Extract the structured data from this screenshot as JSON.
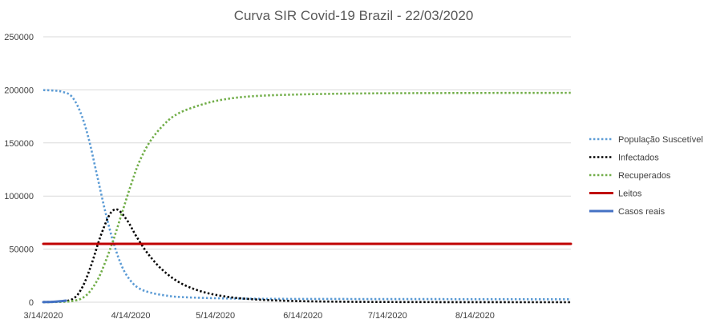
{
  "chart_data": {
    "type": "line",
    "title": "Curva SIR Covid-19 Brazil - 22/03/2020",
    "xlabel": "",
    "ylabel": "",
    "ylim": [
      0,
      250000
    ],
    "yticks": [
      0,
      50000,
      100000,
      150000,
      200000,
      250000
    ],
    "ytick_labels": [
      "0",
      "50000",
      "100000",
      "150000",
      "200000",
      "250000"
    ],
    "xlim": [
      "2020-03-14",
      "2020-09-17"
    ],
    "xticks": [
      "2020-03-14",
      "2020-04-14",
      "2020-05-14",
      "2020-06-14",
      "2020-07-14",
      "2020-08-14"
    ],
    "xtick_labels": [
      "3/14/2020",
      "4/14/2020",
      "5/14/2020",
      "6/14/2020",
      "7/14/2020",
      "8/14/2020"
    ],
    "grid": true,
    "legend_position": "right",
    "series": [
      {
        "name": "População Suscetível",
        "color": "#5b9bd5",
        "style": "dotted",
        "points": [
          [
            "2020-03-14",
            199800
          ],
          [
            "2020-03-18",
            199300
          ],
          [
            "2020-03-21",
            198000
          ],
          [
            "2020-03-24",
            194000
          ],
          [
            "2020-03-27",
            180000
          ],
          [
            "2020-03-30",
            155000
          ],
          [
            "2020-04-02",
            120000
          ],
          [
            "2020-04-05",
            85000
          ],
          [
            "2020-04-08",
            55000
          ],
          [
            "2020-04-11",
            33000
          ],
          [
            "2020-04-14",
            20000
          ],
          [
            "2020-04-17",
            13000
          ],
          [
            "2020-04-21",
            9000
          ],
          [
            "2020-04-26",
            6500
          ],
          [
            "2020-05-01",
            5000
          ],
          [
            "2020-05-14",
            3800
          ],
          [
            "2020-06-01",
            3200
          ],
          [
            "2020-07-01",
            3000
          ],
          [
            "2020-08-01",
            2900
          ],
          [
            "2020-09-17",
            2800
          ]
        ]
      },
      {
        "name": "Infectados",
        "color": "#000000",
        "style": "dotted",
        "points": [
          [
            "2020-03-14",
            200
          ],
          [
            "2020-03-21",
            800
          ],
          [
            "2020-03-25",
            4000
          ],
          [
            "2020-03-28",
            15000
          ],
          [
            "2020-03-31",
            35000
          ],
          [
            "2020-04-03",
            60000
          ],
          [
            "2020-04-06",
            80000
          ],
          [
            "2020-04-08",
            87000
          ],
          [
            "2020-04-10",
            86000
          ],
          [
            "2020-04-13",
            76000
          ],
          [
            "2020-04-16",
            62000
          ],
          [
            "2020-04-20",
            46000
          ],
          [
            "2020-04-25",
            31000
          ],
          [
            "2020-05-01",
            19000
          ],
          [
            "2020-05-08",
            11000
          ],
          [
            "2020-05-16",
            6000
          ],
          [
            "2020-05-26",
            3000
          ],
          [
            "2020-06-10",
            1200
          ],
          [
            "2020-07-01",
            400
          ],
          [
            "2020-08-01",
            100
          ],
          [
            "2020-09-17",
            20
          ]
        ]
      },
      {
        "name": "Recuperados",
        "color": "#70ad47",
        "style": "dotted",
        "points": [
          [
            "2020-03-14",
            0
          ],
          [
            "2020-03-24",
            1000
          ],
          [
            "2020-03-29",
            6000
          ],
          [
            "2020-04-02",
            20000
          ],
          [
            "2020-04-05",
            38000
          ],
          [
            "2020-04-08",
            60000
          ],
          [
            "2020-04-11",
            85000
          ],
          [
            "2020-04-14",
            110000
          ],
          [
            "2020-04-17",
            132000
          ],
          [
            "2020-04-21",
            152000
          ],
          [
            "2020-04-26",
            168000
          ],
          [
            "2020-05-01",
            178000
          ],
          [
            "2020-05-09",
            186000
          ],
          [
            "2020-05-17",
            191000
          ],
          [
            "2020-05-27",
            194000
          ],
          [
            "2020-06-10",
            195500
          ],
          [
            "2020-07-01",
            196500
          ],
          [
            "2020-08-01",
            197000
          ],
          [
            "2020-09-17",
            197200
          ]
        ]
      },
      {
        "name": "Leitos",
        "color": "#c00000",
        "style": "solid",
        "points": [
          [
            "2020-03-14",
            55000
          ],
          [
            "2020-09-17",
            55000
          ]
        ]
      },
      {
        "name": "Casos reais",
        "color": "#4472c4",
        "style": "solid",
        "points": [
          [
            "2020-03-14",
            100
          ],
          [
            "2020-03-16",
            200
          ],
          [
            "2020-03-18",
            430
          ],
          [
            "2020-03-20",
            900
          ],
          [
            "2020-03-22",
            1500
          ]
        ]
      }
    ]
  }
}
